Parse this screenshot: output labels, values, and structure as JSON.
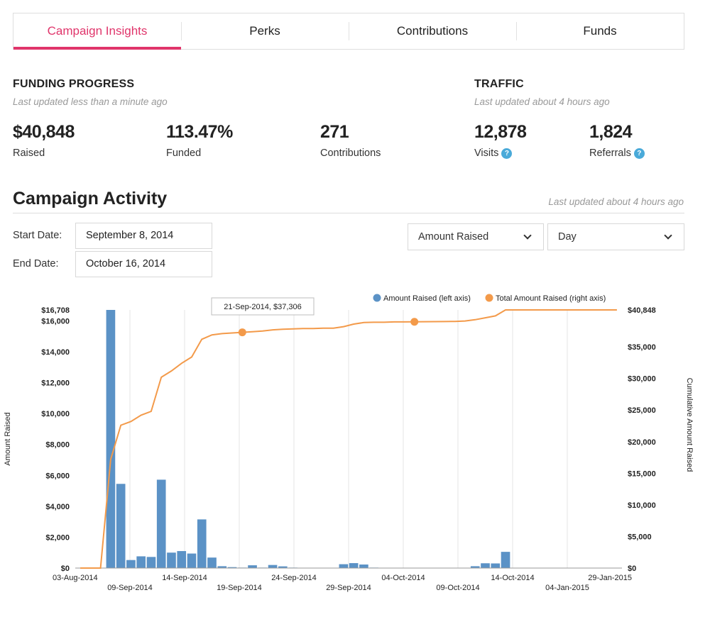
{
  "tabs": [
    {
      "label": "Campaign Insights",
      "active": true
    },
    {
      "label": "Perks",
      "active": false
    },
    {
      "label": "Contributions",
      "active": false
    },
    {
      "label": "Funds",
      "active": false
    }
  ],
  "funding": {
    "heading": "FUNDING PROGRESS",
    "updated": "Last updated less than a minute ago",
    "raised": {
      "value": "$40,848",
      "label": "Raised"
    },
    "funded": {
      "value": "113.47%",
      "label": "Funded"
    },
    "contributions": {
      "value": "271",
      "label": "Contributions"
    }
  },
  "traffic": {
    "heading": "TRAFFIC",
    "updated": "Last updated about 4 hours ago",
    "visits": {
      "value": "12,878",
      "label": "Visits"
    },
    "referrals": {
      "value": "1,824",
      "label": "Referrals"
    }
  },
  "activity": {
    "title": "Campaign Activity",
    "updated": "Last updated about 4 hours ago",
    "start_label": "Start Date:",
    "start_value": "September 8, 2014",
    "end_label": "End Date:",
    "end_value": "October 16, 2014",
    "metric_select": "Amount Raised",
    "interval_select": "Day"
  },
  "colors": {
    "accent": "#e0356b",
    "bar": "#5b92c6",
    "line": "#f39a4a"
  },
  "chart_data": {
    "type": "bar+line",
    "legend": [
      "Amount Raised (left axis)",
      "Total Amount Raised (right axis)"
    ],
    "legend_position": "top-right",
    "ylabel": "Amount Raised",
    "y2label": "Cumulative Amount Raised",
    "ylim": [
      0,
      16708
    ],
    "y_ticks": [
      "$0",
      "$2,000",
      "$4,000",
      "$6,000",
      "$8,000",
      "$10,000",
      "$12,000",
      "$14,000",
      "$16,000",
      "$16,708"
    ],
    "y2lim": [
      0,
      40848
    ],
    "y2_ticks": [
      "$0",
      "$5,000",
      "$10,000",
      "$15,000",
      "$20,000",
      "$25,000",
      "$30,000",
      "$35,000",
      "$40,848"
    ],
    "x_tick_labels": [
      "03-Aug-2014",
      "09-Sep-2014",
      "14-Sep-2014",
      "19-Sep-2014",
      "24-Sep-2014",
      "29-Sep-2014",
      "04-Oct-2014",
      "09-Oct-2014",
      "14-Oct-2014",
      "04-Jan-2015",
      "29-Jan-2015"
    ],
    "tooltip": "21-Sep-2014, $37,306",
    "series": [
      {
        "name": "Amount Raised (left axis)",
        "kind": "bar",
        "values": [
          0,
          0,
          0,
          16708,
          5450,
          520,
          760,
          720,
          5720,
          1000,
          1100,
          940,
          3150,
          680,
          120,
          60,
          30,
          180,
          30,
          200,
          110,
          30,
          20,
          20,
          20,
          20,
          250,
          320,
          230,
          30,
          20,
          20,
          20,
          20,
          20,
          20,
          20,
          20,
          20,
          120,
          310,
          300,
          1050,
          20,
          20,
          20,
          20,
          20,
          20,
          20,
          20,
          20,
          20,
          20
        ]
      },
      {
        "name": "Total Amount Raised (right axis)",
        "kind": "line",
        "values": [
          0,
          0,
          0,
          17200,
          22600,
          23200,
          24200,
          24800,
          30200,
          31200,
          32400,
          33400,
          36200,
          36900,
          37100,
          37200,
          37306,
          37400,
          37500,
          37700,
          37800,
          37850,
          37900,
          37900,
          37950,
          37950,
          38200,
          38600,
          38850,
          38900,
          38900,
          38950,
          38950,
          38970,
          38990,
          39000,
          39010,
          39030,
          39100,
          39300,
          39600,
          39900,
          40848,
          40848,
          40848,
          40848,
          40848,
          40848,
          40848,
          40848,
          40848,
          40848,
          40848,
          40848
        ]
      }
    ],
    "highlight_points": [
      16,
      33
    ]
  }
}
